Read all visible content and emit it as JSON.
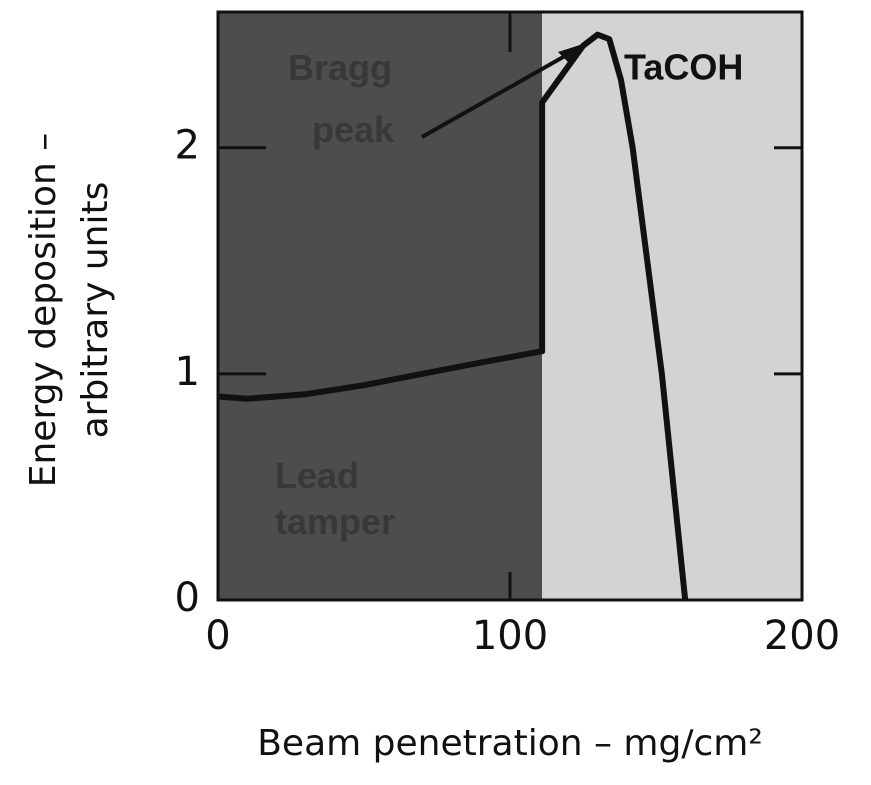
{
  "chart_data": {
    "type": "line",
    "ylabel": [
      "Energy deposition –",
      "arbitrary units"
    ],
    "xlabel": "Beam penetration – mg/cm²",
    "xlim": [
      0,
      200
    ],
    "xticks": [
      0,
      100,
      200
    ],
    "ylim": [
      0,
      2.6
    ],
    "yticks": [
      0,
      1,
      2
    ],
    "regions": [
      {
        "name": "Lead tamper",
        "range": [
          0,
          111
        ],
        "color": "#4d4d4d"
      },
      {
        "name": "TaCOH",
        "range": [
          111,
          200
        ],
        "color": "#d3d3d3"
      }
    ],
    "annotations": [
      "Bragg peak"
    ],
    "series": [
      {
        "color": "#111111",
        "x": [
          0,
          10,
          30,
          50,
          70,
          90,
          111,
          111,
          125,
          130,
          134,
          138,
          142,
          147,
          152,
          156,
          160
        ],
        "values": [
          0.9,
          0.89,
          0.91,
          0.95,
          1.0,
          1.05,
          1.1,
          2.2,
          2.45,
          2.5,
          2.48,
          2.3,
          2.0,
          1.5,
          1.0,
          0.5,
          0
        ]
      }
    ]
  }
}
